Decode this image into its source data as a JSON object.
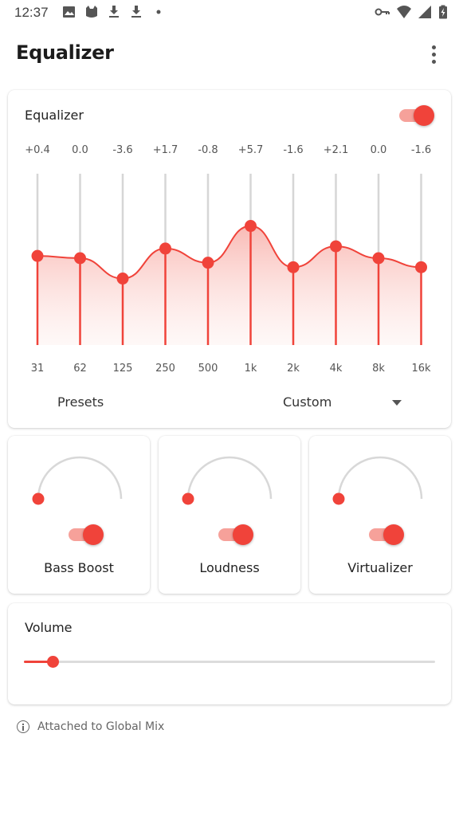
{
  "status_bar": {
    "time": "12:37",
    "left_icons": [
      "image-icon",
      "cat-icon",
      "download-icon",
      "download-icon",
      "dot-icon"
    ],
    "right_icons": [
      "vpn-key-icon",
      "wifi-icon",
      "signal-icon",
      "battery-icon"
    ]
  },
  "app_bar": {
    "title": "Equalizer",
    "more_icon": "more-vert-icon"
  },
  "equalizer": {
    "title": "Equalizer",
    "enabled": true,
    "bands": [
      {
        "freq": "31",
        "gain": "+0.4",
        "value": 0.4
      },
      {
        "freq": "62",
        "gain": "0.0",
        "value": 0.0
      },
      {
        "freq": "125",
        "gain": "-3.6",
        "value": -3.6
      },
      {
        "freq": "250",
        "gain": "+1.7",
        "value": 1.7
      },
      {
        "freq": "500",
        "gain": "-0.8",
        "value": -0.8
      },
      {
        "freq": "1k",
        "gain": "+5.7",
        "value": 5.7
      },
      {
        "freq": "2k",
        "gain": "-1.6",
        "value": -1.6
      },
      {
        "freq": "4k",
        "gain": "+2.1",
        "value": 2.1
      },
      {
        "freq": "8k",
        "gain": "0.0",
        "value": 0.0
      },
      {
        "freq": "16k",
        "gain": "-1.6",
        "value": -1.6
      }
    ],
    "presets_label": "Presets",
    "preset_value": "Custom",
    "dropdown_icon": "arrow-drop-down-icon"
  },
  "effects": [
    {
      "label": "Bass Boost",
      "enabled": true,
      "level": 0
    },
    {
      "label": "Loudness",
      "enabled": true,
      "level": 0
    },
    {
      "label": "Virtualizer",
      "enabled": true,
      "level": 0
    }
  ],
  "volume": {
    "title": "Volume",
    "level": 0.07
  },
  "footer": {
    "icon": "info-icon",
    "text": "Attached to Global Mix"
  },
  "colors": {
    "accent": "#f0433a",
    "accent_light": "#f6a19a",
    "track": "#dcdcdc"
  }
}
